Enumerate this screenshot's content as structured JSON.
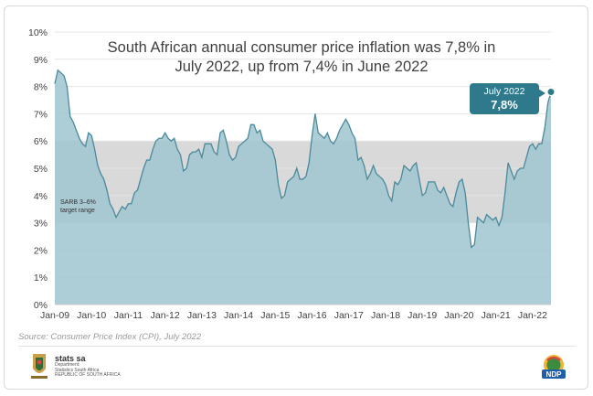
{
  "chart_data": {
    "type": "area",
    "title": "South African annual consumer price inflation was 7,8% in July 2022, up from 7,4% in June 2022",
    "title_line1": "South African annual consumer price inflation was 7,8% in",
    "title_line2": "July 2022, up from 7,4% in June 2022",
    "x_tick_labels": [
      "Jan-09",
      "Jan-10",
      "Jan-11",
      "Jan-12",
      "Jan-13",
      "Jan-14",
      "Jan-15",
      "Jan-16",
      "Jan-17",
      "Jan-18",
      "Jan-19",
      "Jan-20",
      "Jan-21",
      "Jan-22"
    ],
    "y_tick_labels": [
      "0%",
      "1%",
      "2%",
      "3%",
      "4%",
      "5%",
      "6%",
      "7%",
      "8%",
      "9%",
      "10%"
    ],
    "ylim": [
      0,
      10
    ],
    "x_start": "2009-01",
    "series": [
      {
        "values": [
          8.1,
          8.6,
          8.5,
          8.4,
          8.0,
          6.9,
          6.7,
          6.4,
          6.1,
          5.9,
          5.8,
          6.3,
          6.2,
          5.7,
          5.1,
          4.8,
          4.6,
          4.2,
          3.7,
          3.5,
          3.2,
          3.4,
          3.6,
          3.5,
          3.7,
          3.7,
          4.1,
          4.2,
          4.6,
          5.0,
          5.3,
          5.3,
          5.7,
          6.0,
          6.1,
          6.1,
          6.3,
          6.1,
          6.0,
          6.1,
          5.7,
          5.5,
          4.9,
          5.0,
          5.5,
          5.6,
          5.6,
          5.7,
          5.4,
          5.9,
          5.9,
          5.9,
          5.6,
          5.5,
          6.3,
          6.4,
          6.0,
          5.5,
          5.3,
          5.4,
          5.8,
          5.9,
          6.0,
          6.1,
          6.6,
          6.6,
          6.3,
          6.4,
          6.0,
          5.9,
          5.8,
          5.7,
          5.3,
          4.4,
          3.9,
          4.0,
          4.5,
          4.6,
          4.7,
          5.0,
          4.6,
          4.6,
          4.7,
          5.2,
          6.2,
          7.0,
          6.3,
          6.2,
          6.1,
          6.3,
          6.0,
          5.9,
          6.1,
          6.4,
          6.6,
          6.8,
          6.6,
          6.3,
          6.1,
          5.3,
          5.4,
          5.1,
          4.6,
          4.8,
          5.1,
          4.8,
          4.7,
          4.6,
          4.4,
          4.0,
          3.8,
          4.5,
          4.4,
          4.6,
          5.1,
          5.0,
          4.9,
          5.1,
          5.2,
          4.6,
          4.0,
          4.1,
          4.5,
          4.5,
          4.5,
          4.2,
          4.1,
          4.3,
          4.0,
          3.7,
          3.6,
          4.1,
          4.5,
          4.6,
          4.1,
          3.0,
          2.1,
          2.2,
          3.2,
          3.1,
          3.0,
          3.3,
          3.2,
          3.1,
          3.2,
          2.9,
          3.2,
          4.1,
          5.2,
          4.9,
          4.6,
          4.9,
          5.0,
          5.0,
          5.4,
          5.8,
          5.9,
          5.7,
          5.9,
          5.9,
          6.5,
          7.4,
          7.8
        ]
      }
    ],
    "shaded_band": {
      "from": 3,
      "to": 6,
      "label": "SARB 3–6% target range"
    },
    "grid": true,
    "annotation": {
      "label": "July 2022",
      "value": "7,8%"
    },
    "colors": {
      "area": "#9fc4d0",
      "line": "#4a8a9c",
      "band": "#d9d9d9",
      "callout": "#2e7a8c"
    }
  },
  "band_label_line1": "SARB 3–6%",
  "band_label_line2": "target range",
  "source": "Source: Consumer Price Index (CPI), July 2022",
  "footer": {
    "brand": "stats sa",
    "dept1": "Department:",
    "dept2": "Statistics South Africa",
    "dept3": "REPUBLIC OF SOUTH AFRICA",
    "ndp": "NDP"
  }
}
